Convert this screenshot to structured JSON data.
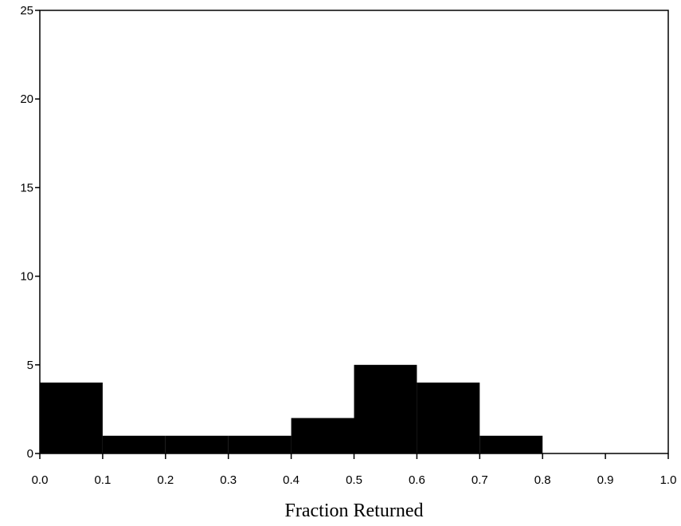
{
  "chart_data": {
    "type": "bar",
    "title": "",
    "xlabel": "Fraction Returned",
    "ylabel": "",
    "xlim": [
      0.0,
      1.0
    ],
    "ylim": [
      0,
      25
    ],
    "bin_edges": [
      0.0,
      0.1,
      0.2,
      0.3,
      0.4,
      0.5,
      0.6,
      0.7,
      0.8,
      0.9,
      1.0
    ],
    "values": [
      4,
      1,
      1,
      1,
      2,
      5,
      4,
      1,
      0,
      0
    ],
    "x_ticks": [
      "0.0",
      "0.1",
      "0.2",
      "0.3",
      "0.4",
      "0.5",
      "0.6",
      "0.7",
      "0.8",
      "0.9",
      "1.0"
    ],
    "y_ticks": [
      "0",
      "5",
      "10",
      "15",
      "20",
      "25"
    ],
    "grid": false,
    "bar_color": "#000000"
  }
}
